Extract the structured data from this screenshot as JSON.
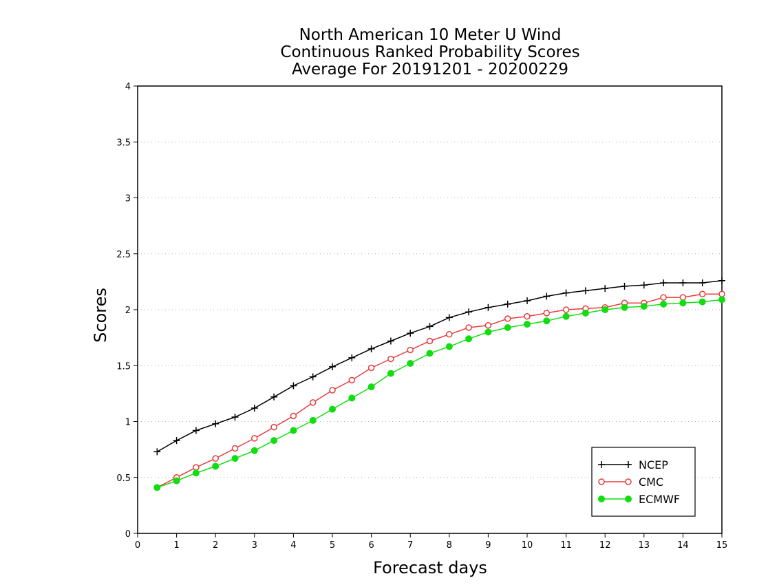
{
  "chart_data": {
    "type": "line",
    "title": [
      "North American 10 Meter U Wind",
      "Continuous Ranked Probability Scores",
      "Average For 20191201 - 20200229"
    ],
    "xlabel": "Forecast days",
    "ylabel": "Scores",
    "xlim": [
      0,
      15
    ],
    "ylim": [
      0,
      4
    ],
    "x_ticks": [
      "0",
      "1",
      "2",
      "3",
      "4",
      "5",
      "6",
      "7",
      "8",
      "9",
      "10",
      "11",
      "12",
      "13",
      "14",
      "15"
    ],
    "y_ticks": [
      "0",
      "0.5",
      "1",
      "1.5",
      "2",
      "2.5",
      "3",
      "3.5",
      "4"
    ],
    "grid": "horizontal dotted",
    "legend_position": "bottom-right",
    "x": [
      0.5,
      1.0,
      1.5,
      2.0,
      2.5,
      3.0,
      3.5,
      4.0,
      4.5,
      5.0,
      5.5,
      6.0,
      6.5,
      7.0,
      7.5,
      8.0,
      8.5,
      9.0,
      9.5,
      10.0,
      10.5,
      11.0,
      11.5,
      12.0,
      12.5,
      13.0,
      13.5,
      14.0,
      14.5,
      15.0
    ],
    "series": [
      {
        "name": "NCEP",
        "color": "#000000",
        "marker": "plus",
        "values": [
          0.73,
          0.83,
          0.92,
          0.98,
          1.04,
          1.12,
          1.22,
          1.32,
          1.4,
          1.49,
          1.57,
          1.65,
          1.72,
          1.79,
          1.85,
          1.93,
          1.98,
          2.02,
          2.05,
          2.08,
          2.12,
          2.15,
          2.17,
          2.19,
          2.21,
          2.22,
          2.24,
          2.24,
          2.24,
          2.26
        ]
      },
      {
        "name": "CMC",
        "color": "#e83c3c",
        "marker": "open-circle",
        "values": [
          0.41,
          0.5,
          0.59,
          0.67,
          0.76,
          0.85,
          0.95,
          1.05,
          1.17,
          1.28,
          1.37,
          1.48,
          1.56,
          1.64,
          1.72,
          1.78,
          1.84,
          1.86,
          1.92,
          1.94,
          1.97,
          2.0,
          2.01,
          2.02,
          2.06,
          2.06,
          2.11,
          2.11,
          2.14,
          2.14
        ]
      },
      {
        "name": "ECMWF",
        "color": "#11dd11",
        "marker": "filled-circle",
        "values": [
          0.41,
          0.47,
          0.54,
          0.6,
          0.67,
          0.74,
          0.83,
          0.92,
          1.01,
          1.11,
          1.21,
          1.31,
          1.43,
          1.52,
          1.61,
          1.67,
          1.74,
          1.8,
          1.84,
          1.87,
          1.9,
          1.94,
          1.97,
          2.0,
          2.02,
          2.03,
          2.05,
          2.06,
          2.07,
          2.09
        ]
      }
    ]
  }
}
